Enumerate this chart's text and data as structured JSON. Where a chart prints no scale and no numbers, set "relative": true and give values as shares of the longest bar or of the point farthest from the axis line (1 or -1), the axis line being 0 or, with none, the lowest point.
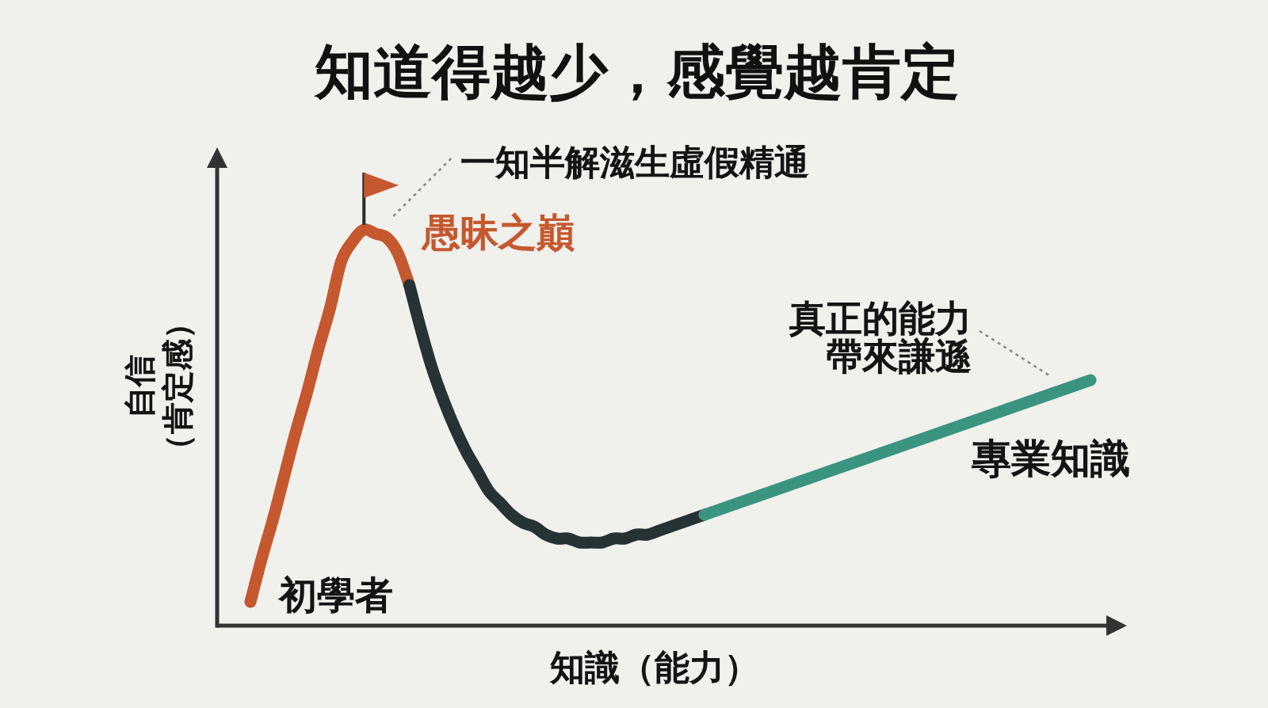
{
  "chart_data": {
    "type": "line",
    "relative": true,
    "title": "知道得越少，感覺越肯定",
    "xlabel": "知識（能力）",
    "ylabel": "自信（肯定感）",
    "categories": [
      null,
      null,
      null,
      null,
      null,
      null,
      null,
      null,
      null,
      null,
      null,
      null,
      null,
      null,
      null,
      null,
      null,
      null,
      null,
      null,
      null,
      null,
      null,
      null,
      null,
      null,
      null,
      null,
      null,
      null,
      null,
      null,
      null,
      null,
      null,
      null,
      null,
      null,
      null,
      null,
      null,
      null,
      null,
      null,
      null,
      null,
      null,
      null,
      null,
      null,
      null,
      null,
      null,
      null,
      null,
      null,
      null,
      null,
      null,
      null,
      null,
      null,
      null,
      null,
      null,
      null,
      null,
      null,
      null,
      null,
      null,
      null,
      null,
      null,
      null
    ],
    "series": [
      {
        "name": "愚昧之巔",
        "color": "#c5582e",
        "values": [
          0.06,
          0.17,
          0.27,
          0.38,
          0.49,
          0.59,
          0.7,
          0.8,
          0.92,
          0.97,
          1.0,
          0.99,
          0.98,
          0.94,
          0.86,
          null,
          null,
          null,
          null,
          null,
          null,
          null,
          null,
          null,
          null,
          null,
          null,
          null,
          null,
          null,
          null,
          null,
          null,
          null,
          null,
          null,
          null,
          null,
          null,
          null,
          null,
          null,
          null,
          null,
          null,
          null,
          null,
          null,
          null,
          null,
          null,
          null,
          null,
          null,
          null,
          null,
          null,
          null,
          null,
          null,
          null,
          null,
          null,
          null,
          null,
          null,
          null,
          null,
          null,
          null,
          null,
          null,
          null,
          null,
          null
        ]
      },
      {
        "color": "#263234",
        "values": [
          null,
          null,
          null,
          null,
          null,
          null,
          null,
          null,
          null,
          null,
          null,
          null,
          null,
          null,
          0.86,
          0.75,
          0.65,
          0.57,
          0.5,
          0.44,
          0.39,
          0.34,
          0.31,
          0.28,
          0.26,
          0.25,
          0.23,
          0.22,
          0.22,
          0.21,
          0.21,
          0.21,
          0.22,
          0.22,
          0.23,
          0.23,
          0.24,
          0.25,
          0.26,
          0.27,
          0.28,
          null,
          null,
          null,
          null,
          null,
          null,
          null,
          null,
          null,
          null,
          null,
          null,
          null,
          null,
          null,
          null,
          null,
          null,
          null,
          null,
          null,
          null,
          null,
          null,
          null,
          null,
          null,
          null,
          null,
          null,
          null,
          null,
          null,
          null
        ]
      },
      {
        "name": "專業知識",
        "color": "#3a9480",
        "values": [
          null,
          null,
          null,
          null,
          null,
          null,
          null,
          null,
          null,
          null,
          null,
          null,
          null,
          null,
          null,
          null,
          null,
          null,
          null,
          null,
          null,
          null,
          null,
          null,
          null,
          null,
          null,
          null,
          null,
          null,
          null,
          null,
          null,
          null,
          null,
          null,
          null,
          null,
          null,
          null,
          0.28,
          0.29,
          0.3,
          0.31,
          0.32,
          0.33,
          0.34,
          0.35,
          0.36,
          0.37,
          0.38,
          0.39,
          0.4,
          0.41,
          0.42,
          0.43,
          0.44,
          0.45,
          0.46,
          0.47,
          0.48,
          0.49,
          0.5,
          0.51,
          0.52,
          0.53,
          0.54,
          0.55,
          0.56,
          0.57,
          0.58,
          0.59,
          0.6,
          0.61,
          0.62
        ]
      }
    ],
    "annotations": [
      "一知半解滋生虛假精通",
      "真正的能力帶來謙遜",
      "初學者"
    ]
  }
}
